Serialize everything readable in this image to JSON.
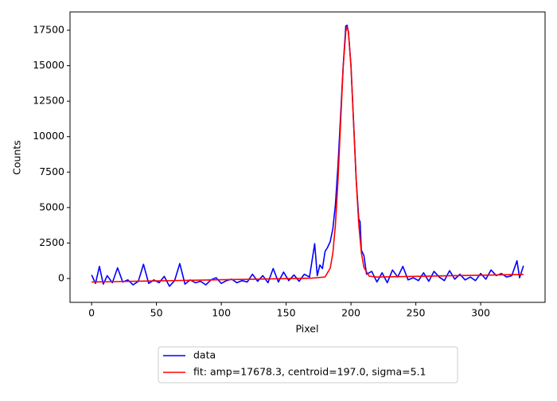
{
  "chart_data": {
    "type": "line",
    "xlabel": "Pixel",
    "ylabel": "Counts",
    "xlim": [
      -16.65,
      349.65
    ],
    "ylim": [
      -1683,
      18790
    ],
    "xticks": [
      0,
      50,
      100,
      150,
      200,
      250,
      300
    ],
    "yticks": [
      0,
      2500,
      5000,
      7500,
      10000,
      12500,
      15000,
      17500
    ],
    "legend": "below",
    "series": [
      {
        "name": "data",
        "color": "#0000ff",
        "x": [
          0,
          3,
          6,
          9,
          12,
          16,
          20,
          24,
          28,
          32,
          36,
          40,
          44,
          48,
          52,
          56,
          60,
          64,
          68,
          72,
          76,
          80,
          84,
          88,
          92,
          96,
          100,
          104,
          108,
          112,
          116,
          120,
          124,
          128,
          132,
          136,
          140,
          144,
          148,
          152,
          156,
          160,
          164,
          168,
          172,
          174,
          176,
          178,
          180,
          182,
          184,
          186,
          188,
          190,
          192,
          194,
          196,
          197,
          198,
          200,
          202,
          204,
          206,
          207,
          208,
          210,
          212,
          216,
          220,
          224,
          228,
          232,
          236,
          240,
          244,
          248,
          252,
          256,
          260,
          264,
          268,
          272,
          276,
          280,
          284,
          288,
          292,
          296,
          300,
          304,
          308,
          312,
          316,
          320,
          324,
          328,
          330,
          333
        ],
        "values": [
          250,
          -350,
          850,
          -400,
          200,
          -300,
          750,
          -250,
          -100,
          -450,
          -200,
          1000,
          -350,
          -100,
          -300,
          150,
          -550,
          -150,
          1050,
          -400,
          -100,
          -300,
          -200,
          -450,
          -100,
          50,
          -350,
          -150,
          -50,
          -300,
          -150,
          -250,
          300,
          -200,
          200,
          -300,
          700,
          -250,
          450,
          -150,
          250,
          -200,
          300,
          100,
          2450,
          200,
          950,
          700,
          1900,
          2200,
          2600,
          3500,
          5200,
          8000,
          11500,
          15000,
          17800,
          17850,
          17400,
          15000,
          11000,
          7000,
          4200,
          4000,
          2000,
          1600,
          300,
          500,
          -250,
          400,
          -300,
          600,
          100,
          850,
          -100,
          50,
          -150,
          400,
          -200,
          500,
          100,
          -150,
          550,
          -50,
          300,
          -100,
          100,
          -150,
          350,
          -50,
          600,
          200,
          350,
          100,
          200,
          1250,
          50,
          900
        ]
      },
      {
        "name": "fit: amp=17678.3, centroid=197.0, sigma=5.1",
        "color": "#ff0000",
        "x": [
          0,
          20,
          40,
          60,
          80,
          100,
          120,
          140,
          160,
          170,
          180,
          184,
          186,
          188,
          190,
          192,
          194,
          196,
          197,
          198,
          200,
          202,
          204,
          206,
          208,
          210,
          214,
          220,
          240,
          260,
          280,
          300,
          320,
          333
        ],
        "values": [
          -250,
          -218,
          -186,
          -154,
          -122,
          -90,
          -58,
          -26,
          6,
          22,
          106,
          730,
          1775,
          3776,
          6948,
          10989,
          14927,
          17406,
          17743,
          17409,
          14937,
          11005,
          6970,
          3805,
          1810,
          772,
          160,
          102,
          134,
          166,
          198,
          230,
          262,
          283
        ]
      }
    ]
  }
}
